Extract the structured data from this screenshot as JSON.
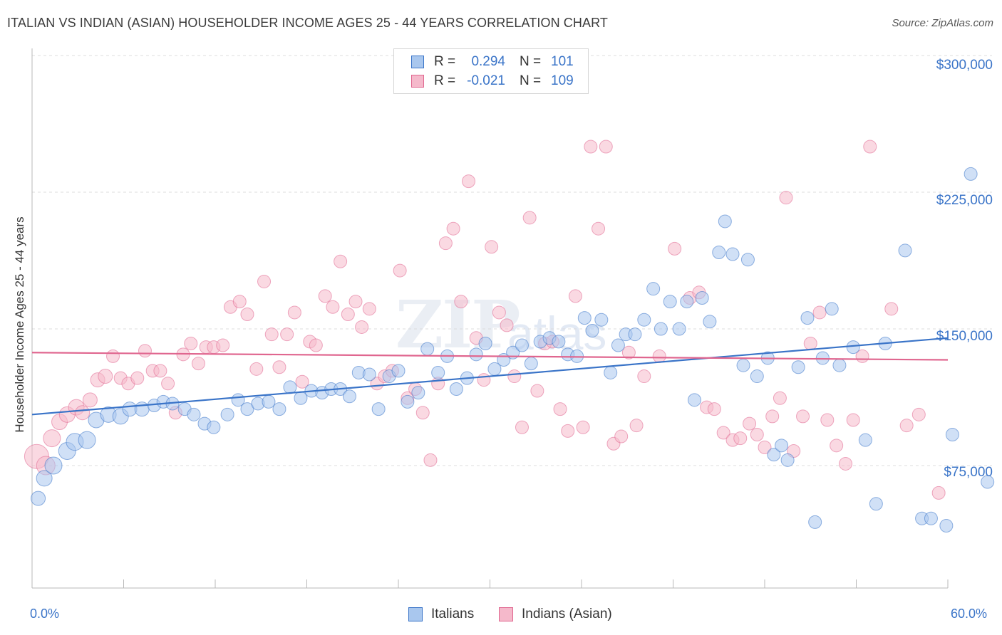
{
  "title": "ITALIAN VS INDIAN (ASIAN) HOUSEHOLDER INCOME AGES 25 - 44 YEARS CORRELATION CHART",
  "source": "Source: ZipAtlas.com",
  "watermark": {
    "part1": "ZIP",
    "part2": "atlas"
  },
  "legend": {
    "italians": {
      "r_label": "R =",
      "r_value": "0.294",
      "n_label": "N =",
      "n_value": "101"
    },
    "indians": {
      "r_label": "R =",
      "r_value": "-0.021",
      "n_label": "N =",
      "n_value": "109"
    }
  },
  "bottom_legend": {
    "italians": "Italians",
    "indians": "Indians (Asian)"
  },
  "colors": {
    "blue": "#3a74c8",
    "blue_fill": "#a9c7ee",
    "pink": "#e0668f",
    "pink_fill": "#f5b9cb",
    "grid": "#dcdcdc"
  },
  "chart_data": {
    "type": "scatter",
    "title": "ITALIAN VS INDIAN (ASIAN) HOUSEHOLDER INCOME AGES 25 - 44 YEARS CORRELATION CHART",
    "xlabel": "",
    "ylabel": "Householder Income Ages 25 - 44 years",
    "xlim": [
      0,
      60
    ],
    "ylim": [
      15000,
      310000
    ],
    "x_tick_labels": [
      "0.0%",
      "60.0%"
    ],
    "y_tick_labels": [
      "$75,000",
      "$150,000",
      "$225,000",
      "$300,000"
    ],
    "y_ticks": [
      75000,
      150000,
      225000,
      300000
    ],
    "grid": true,
    "legend_position": "top-center",
    "series": [
      {
        "name": "Italians",
        "color": "#3a74c8",
        "trend": [
          [
            0,
            103000
          ],
          [
            60,
            145000
          ]
        ],
        "points": [
          [
            0.4,
            57000,
            9
          ],
          [
            0.8,
            68000,
            10
          ],
          [
            1.4,
            75000,
            11
          ],
          [
            2.3,
            83000,
            11
          ],
          [
            2.8,
            88000,
            11
          ],
          [
            3.6,
            89000,
            11
          ],
          [
            4.2,
            100000,
            10
          ],
          [
            5.0,
            103000,
            10
          ],
          [
            5.8,
            102000,
            10
          ],
          [
            6.4,
            106000,
            9
          ],
          [
            7.2,
            106000,
            9
          ],
          [
            8.0,
            108000,
            8
          ],
          [
            8.6,
            110000,
            8
          ],
          [
            9.2,
            109000,
            8
          ],
          [
            10.0,
            106000,
            8
          ],
          [
            10.6,
            103000,
            8
          ],
          [
            11.3,
            98000,
            8
          ],
          [
            11.9,
            96000,
            8
          ],
          [
            12.8,
            103000,
            8
          ],
          [
            13.5,
            111000,
            8
          ],
          [
            14.1,
            106000,
            8
          ],
          [
            14.8,
            109000,
            8
          ],
          [
            15.5,
            110000,
            8
          ],
          [
            16.2,
            106000,
            8
          ],
          [
            16.9,
            118000,
            8
          ],
          [
            17.6,
            112000,
            8
          ],
          [
            18.3,
            116000,
            8
          ],
          [
            19.0,
            115000,
            8
          ],
          [
            19.6,
            117000,
            8
          ],
          [
            20.2,
            117000,
            8
          ],
          [
            20.8,
            113000,
            8
          ],
          [
            21.4,
            126000,
            8
          ],
          [
            22.1,
            125000,
            8
          ],
          [
            22.7,
            106000,
            8
          ],
          [
            23.4,
            124000,
            8
          ],
          [
            24.0,
            127000,
            8
          ],
          [
            24.6,
            110000,
            8
          ],
          [
            25.3,
            115000,
            8
          ],
          [
            25.9,
            139000,
            8
          ],
          [
            26.6,
            126000,
            8
          ],
          [
            27.2,
            135000,
            8
          ],
          [
            27.8,
            117000,
            8
          ],
          [
            28.5,
            123000,
            8
          ],
          [
            29.1,
            136000,
            8
          ],
          [
            29.7,
            142000,
            8
          ],
          [
            30.3,
            128000,
            8
          ],
          [
            30.9,
            133000,
            8
          ],
          [
            31.5,
            137000,
            8
          ],
          [
            32.1,
            141000,
            8
          ],
          [
            32.7,
            131000,
            8
          ],
          [
            33.3,
            143000,
            8
          ],
          [
            33.9,
            145000,
            8
          ],
          [
            34.5,
            143000,
            8
          ],
          [
            35.1,
            136000,
            8
          ],
          [
            35.7,
            135000,
            8
          ],
          [
            36.2,
            156000,
            8
          ],
          [
            36.7,
            149000,
            8
          ],
          [
            37.3,
            155000,
            8
          ],
          [
            37.9,
            126000,
            8
          ],
          [
            38.4,
            141000,
            8
          ],
          [
            38.9,
            147000,
            8
          ],
          [
            39.5,
            147000,
            8
          ],
          [
            40.1,
            155000,
            8
          ],
          [
            40.7,
            172000,
            8
          ],
          [
            41.2,
            150000,
            8
          ],
          [
            41.8,
            165000,
            8
          ],
          [
            42.4,
            150000,
            8
          ],
          [
            42.9,
            165000,
            8
          ],
          [
            43.4,
            111000,
            8
          ],
          [
            43.9,
            167000,
            8
          ],
          [
            44.4,
            154000,
            8
          ],
          [
            45.0,
            192000,
            8
          ],
          [
            45.4,
            209000,
            8
          ],
          [
            45.9,
            191000,
            8
          ],
          [
            46.6,
            130000,
            8
          ],
          [
            46.9,
            188000,
            8
          ],
          [
            47.5,
            124000,
            8
          ],
          [
            48.2,
            134000,
            8
          ],
          [
            48.6,
            81000,
            8
          ],
          [
            49.1,
            86000,
            8
          ],
          [
            49.5,
            78000,
            8
          ],
          [
            50.2,
            129000,
            8
          ],
          [
            50.8,
            156000,
            8
          ],
          [
            51.3,
            44000,
            8
          ],
          [
            51.8,
            134000,
            8
          ],
          [
            52.4,
            161000,
            8
          ],
          [
            52.9,
            130000,
            8
          ],
          [
            53.8,
            140000,
            8
          ],
          [
            54.6,
            89000,
            8
          ],
          [
            55.3,
            54000,
            8
          ],
          [
            55.9,
            142000,
            8
          ],
          [
            57.2,
            193000,
            8
          ],
          [
            58.3,
            46000,
            8
          ],
          [
            58.9,
            46000,
            8
          ],
          [
            59.9,
            42000,
            8
          ],
          [
            60.3,
            92000,
            8
          ],
          [
            61.5,
            235000,
            8
          ],
          [
            62.6,
            66000,
            8
          ]
        ]
      },
      {
        "name": "Indians (Asian)",
        "color": "#e0668f",
        "trend": [
          [
            0,
            137000
          ],
          [
            60,
            133000
          ]
        ],
        "points": [
          [
            0.3,
            80000,
            16
          ],
          [
            0.9,
            75000,
            12
          ],
          [
            1.3,
            90000,
            11
          ],
          [
            1.8,
            99000,
            10
          ],
          [
            2.3,
            103000,
            10
          ],
          [
            2.9,
            107000,
            10
          ],
          [
            3.3,
            104000,
            9
          ],
          [
            3.8,
            111000,
            9
          ],
          [
            4.3,
            122000,
            9
          ],
          [
            4.8,
            124000,
            9
          ],
          [
            5.3,
            135000,
            8
          ],
          [
            5.8,
            123000,
            8
          ],
          [
            6.3,
            120000,
            8
          ],
          [
            6.9,
            123000,
            8
          ],
          [
            7.4,
            138000,
            8
          ],
          [
            7.9,
            127000,
            8
          ],
          [
            8.4,
            127000,
            8
          ],
          [
            8.9,
            120000,
            8
          ],
          [
            9.4,
            104000,
            8
          ],
          [
            9.9,
            136000,
            8
          ],
          [
            10.4,
            142000,
            8
          ],
          [
            10.9,
            131000,
            8
          ],
          [
            11.4,
            140000,
            8
          ],
          [
            11.9,
            140000,
            8
          ],
          [
            12.5,
            141000,
            8
          ],
          [
            13.0,
            162000,
            8
          ],
          [
            13.6,
            165000,
            8
          ],
          [
            14.1,
            158000,
            8
          ],
          [
            14.7,
            128000,
            8
          ],
          [
            15.2,
            176000,
            8
          ],
          [
            15.7,
            147000,
            8
          ],
          [
            16.2,
            129000,
            8
          ],
          [
            16.7,
            147000,
            8
          ],
          [
            17.2,
            159000,
            8
          ],
          [
            17.7,
            121000,
            8
          ],
          [
            18.2,
            143000,
            8
          ],
          [
            18.6,
            141000,
            8
          ],
          [
            19.2,
            168000,
            8
          ],
          [
            19.7,
            162000,
            8
          ],
          [
            20.2,
            187000,
            8
          ],
          [
            20.7,
            158000,
            8
          ],
          [
            21.2,
            165000,
            8
          ],
          [
            21.6,
            151000,
            8
          ],
          [
            22.1,
            161000,
            8
          ],
          [
            22.6,
            120000,
            8
          ],
          [
            23.1,
            124000,
            8
          ],
          [
            23.6,
            127000,
            8
          ],
          [
            24.1,
            182000,
            8
          ],
          [
            24.6,
            112000,
            8
          ],
          [
            25.1,
            117000,
            8
          ],
          [
            25.6,
            104000,
            8
          ],
          [
            26.1,
            78000,
            8
          ],
          [
            26.6,
            120000,
            8
          ],
          [
            27.1,
            197000,
            8
          ],
          [
            27.6,
            205000,
            8
          ],
          [
            28.1,
            165000,
            8
          ],
          [
            28.6,
            231000,
            8
          ],
          [
            29.1,
            145000,
            8
          ],
          [
            29.6,
            122000,
            8
          ],
          [
            30.1,
            195000,
            8
          ],
          [
            30.6,
            159000,
            8
          ],
          [
            31.1,
            152000,
            8
          ],
          [
            31.6,
            124000,
            8
          ],
          [
            32.1,
            96000,
            8
          ],
          [
            32.6,
            211000,
            8
          ],
          [
            33.1,
            116000,
            8
          ],
          [
            33.6,
            142000,
            8
          ],
          [
            34.1,
            143000,
            8
          ],
          [
            34.6,
            106000,
            8
          ],
          [
            35.1,
            94000,
            8
          ],
          [
            35.6,
            168000,
            8
          ],
          [
            36.1,
            96000,
            8
          ],
          [
            36.6,
            250000,
            8
          ],
          [
            37.1,
            205000,
            8
          ],
          [
            37.6,
            250000,
            8
          ],
          [
            38.1,
            87000,
            8
          ],
          [
            38.6,
            91000,
            8
          ],
          [
            39.1,
            137000,
            8
          ],
          [
            39.6,
            97000,
            8
          ],
          [
            40.1,
            124000,
            8
          ],
          [
            41.1,
            135000,
            8
          ],
          [
            42.1,
            194000,
            8
          ],
          [
            43.1,
            167000,
            8
          ],
          [
            43.7,
            170000,
            8
          ],
          [
            44.2,
            107000,
            8
          ],
          [
            44.7,
            106000,
            8
          ],
          [
            45.3,
            93000,
            8
          ],
          [
            45.9,
            89000,
            8
          ],
          [
            46.4,
            90000,
            8
          ],
          [
            47.0,
            98000,
            8
          ],
          [
            47.5,
            92000,
            8
          ],
          [
            48.0,
            85000,
            8
          ],
          [
            48.5,
            102000,
            8
          ],
          [
            49.0,
            112000,
            8
          ],
          [
            49.4,
            222000,
            8
          ],
          [
            49.9,
            83000,
            8
          ],
          [
            50.5,
            102000,
            8
          ],
          [
            51.0,
            142000,
            8
          ],
          [
            51.6,
            159000,
            8
          ],
          [
            52.1,
            100000,
            8
          ],
          [
            52.7,
            86000,
            8
          ],
          [
            53.3,
            76000,
            8
          ],
          [
            53.8,
            100000,
            8
          ],
          [
            54.4,
            135000,
            8
          ],
          [
            54.9,
            250000,
            8
          ],
          [
            56.3,
            161000,
            8
          ],
          [
            57.3,
            97000,
            8
          ],
          [
            58.1,
            103000,
            8
          ],
          [
            59.4,
            60000,
            8
          ]
        ]
      }
    ]
  }
}
